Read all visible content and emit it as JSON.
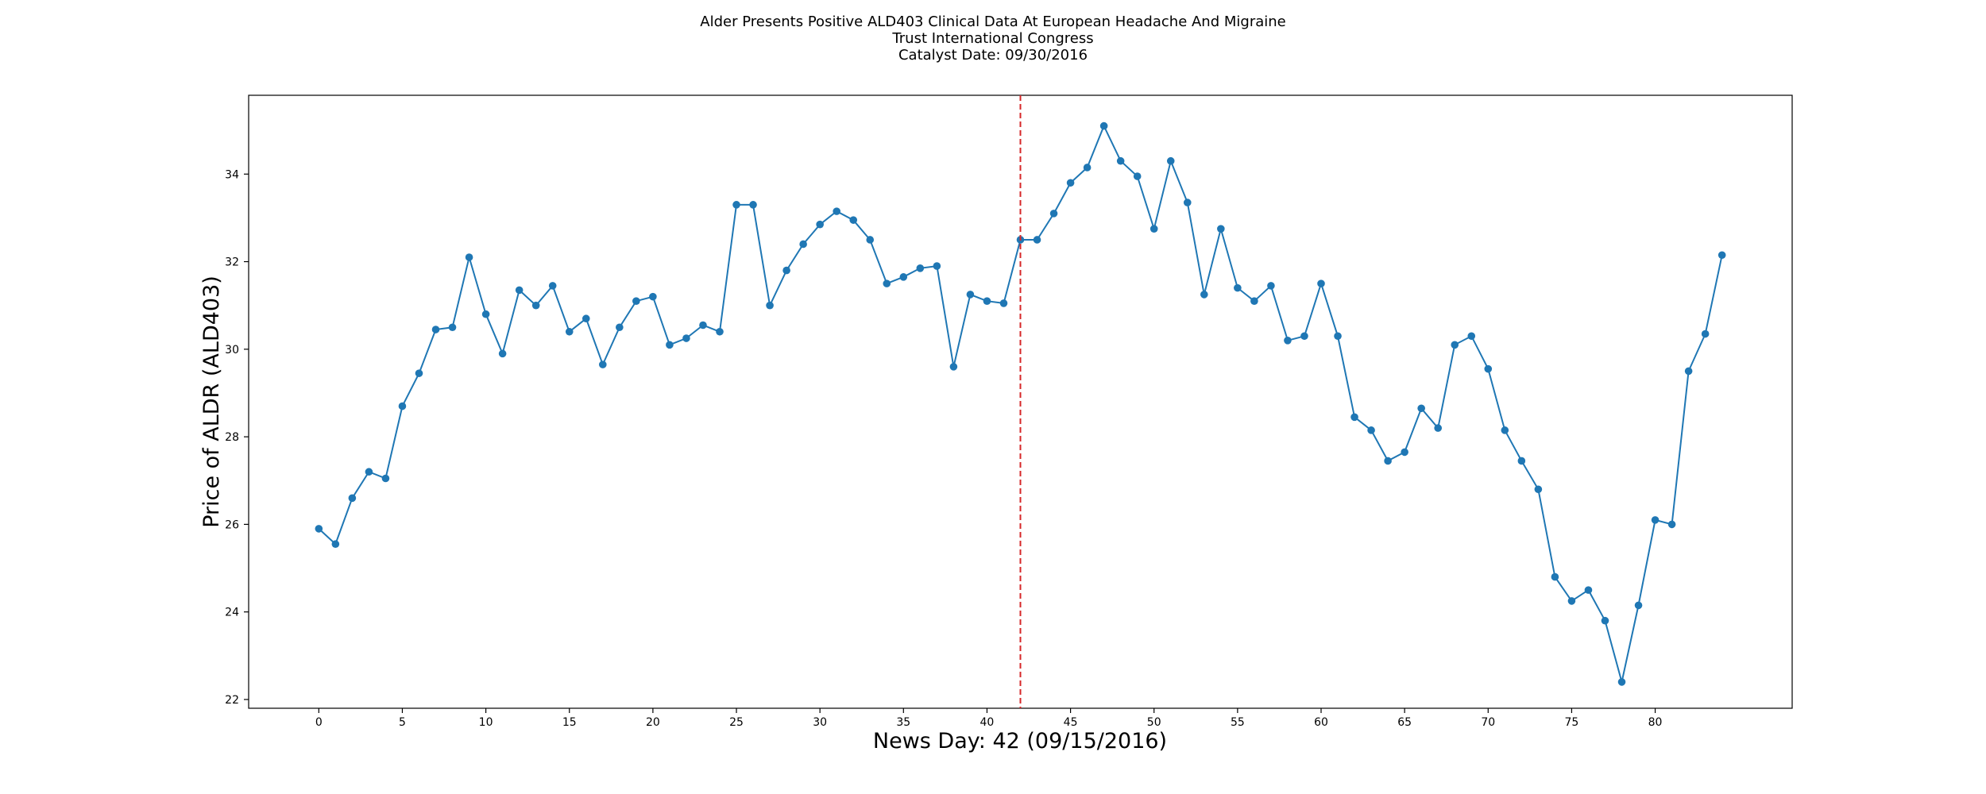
{
  "chart_data": {
    "type": "line",
    "title": [
      "Alder Presents Positive ALD403 Clinical Data At European Headache And Migraine",
      "Trust International Congress",
      "Catalyst Date: 09/30/2016"
    ],
    "xlabel": "News Day: 42 (09/15/2016)",
    "ylabel": "Price of ALDR (ALD403)",
    "xlim": [
      -4.2,
      88.2
    ],
    "ylim": [
      21.8,
      35.8
    ],
    "xticks": [
      0,
      5,
      10,
      15,
      20,
      25,
      30,
      35,
      40,
      45,
      50,
      55,
      60,
      65,
      70,
      75,
      80
    ],
    "yticks": [
      22,
      24,
      26,
      28,
      30,
      32,
      34
    ],
    "grid": false,
    "line_color": "#1f77b4",
    "marker": "circle",
    "event_line": {
      "x": 42,
      "color": "#d62728",
      "style": "dashed"
    },
    "series": [
      {
        "x": [
          0,
          1,
          2,
          3,
          4,
          5,
          6,
          7,
          8,
          9,
          10,
          11,
          12,
          13,
          14,
          15,
          16,
          17,
          18,
          19,
          20,
          21,
          22,
          23,
          24,
          25,
          26,
          27,
          28,
          29,
          30,
          31,
          32,
          33,
          34,
          35,
          36,
          37,
          38,
          39,
          40,
          41,
          42,
          43,
          44,
          45,
          46,
          47,
          48,
          49,
          50,
          51,
          52,
          53,
          54,
          55,
          56,
          57,
          58,
          59,
          60,
          61,
          62,
          63,
          64,
          65,
          66,
          67,
          68,
          69,
          70,
          71,
          72,
          73,
          74,
          75,
          76,
          77,
          78,
          79,
          80,
          81,
          82,
          83,
          84
        ],
        "values": [
          25.9,
          25.55,
          26.6,
          27.2,
          27.05,
          28.7,
          29.45,
          30.45,
          30.5,
          32.1,
          30.8,
          29.9,
          31.35,
          31.0,
          31.45,
          30.4,
          30.7,
          29.65,
          30.5,
          31.1,
          31.2,
          30.1,
          30.25,
          30.55,
          30.4,
          33.3,
          33.3,
          31.0,
          31.8,
          32.4,
          32.85,
          33.15,
          32.95,
          32.5,
          31.5,
          31.65,
          31.85,
          31.9,
          29.6,
          31.25,
          31.1,
          31.05,
          32.5,
          32.5,
          33.1,
          33.8,
          34.15,
          35.1,
          34.3,
          33.95,
          32.75,
          34.3,
          33.35,
          31.25,
          32.75,
          31.4,
          31.1,
          31.45,
          30.2,
          30.3,
          31.5,
          30.3,
          28.45,
          28.15,
          27.45,
          27.65,
          28.65,
          28.2,
          30.1,
          30.3,
          29.55,
          28.15,
          27.45,
          26.8,
          24.8,
          24.25,
          24.5,
          23.8,
          22.4,
          24.15,
          26.1,
          26.0,
          29.5,
          30.35,
          32.15
        ]
      }
    ]
  }
}
